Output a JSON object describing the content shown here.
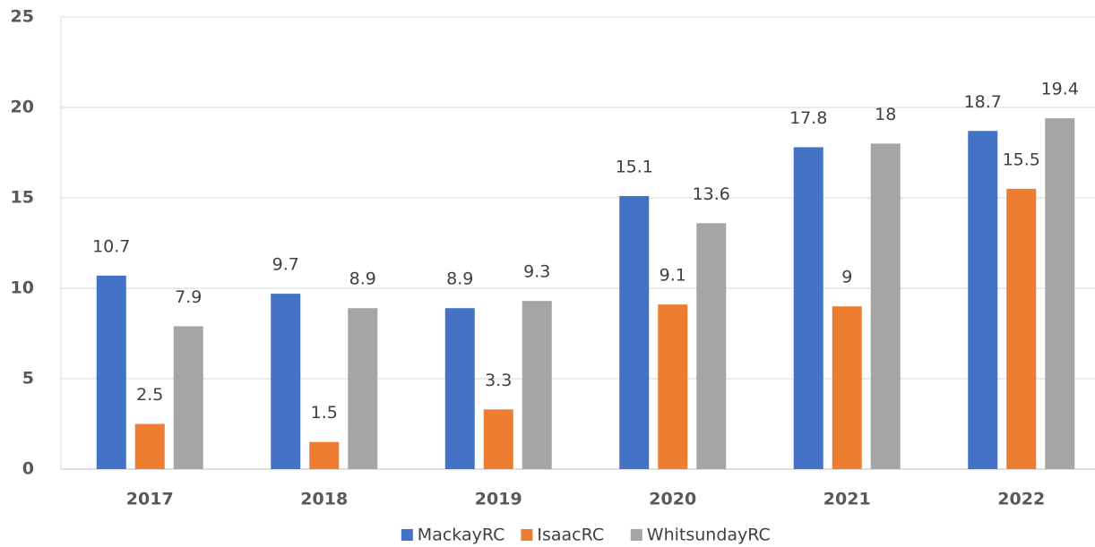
{
  "chart_data": {
    "type": "bar",
    "categories": [
      "2017",
      "2018",
      "2019",
      "2020",
      "2021",
      "2022"
    ],
    "series": [
      {
        "name": "MackayRC",
        "color": "#4472c4",
        "values": [
          10.7,
          9.7,
          8.9,
          15.1,
          17.8,
          18.7
        ]
      },
      {
        "name": "IsaacRC",
        "color": "#ed7d31",
        "values": [
          2.5,
          1.5,
          3.3,
          9.1,
          9,
          15.5
        ]
      },
      {
        "name": "WhitsundayRC",
        "color": "#a5a5a5",
        "values": [
          7.9,
          8.9,
          9.3,
          13.6,
          18,
          19.4
        ]
      }
    ],
    "ylim": [
      0,
      25
    ],
    "yticks": [
      0,
      5,
      10,
      15,
      20,
      25
    ],
    "grid": true,
    "legend": "bottom"
  }
}
